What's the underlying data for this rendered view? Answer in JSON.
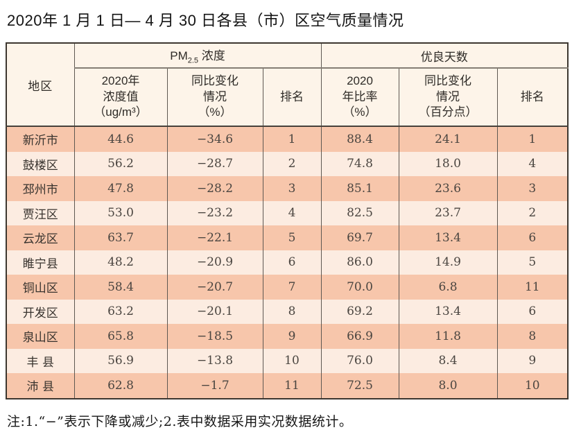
{
  "page": {
    "title": "2020年 1 月 1 日— 4 月 30 日各县（市）区空气质量情况",
    "note": "注:1.“−”表示下降或减少;2.表中数据采用实况数据统计。"
  },
  "table": {
    "region_header": "地区",
    "pm_group": {
      "prefix": "PM",
      "sub": "2.5",
      "suffix": " 浓度"
    },
    "good_days_group": "优良天数",
    "subheaders": {
      "pm_value": "2020年\n浓度值\n（ug/m³）",
      "pm_change": "同比变化\n情况\n（%）",
      "pm_rank": "排名",
      "ratio": "2020\n年比率\n（%）",
      "ratio_change": "同比变化\n情况\n（百分点）",
      "rank": "排名"
    },
    "rows": [
      {
        "region": "新沂市",
        "pm_value": "44.6",
        "pm_change": "−34.6",
        "pm_rank": "1",
        "ratio": "88.4",
        "ratio_change": "24.1",
        "rank": "1"
      },
      {
        "region": "鼓楼区",
        "pm_value": "56.2",
        "pm_change": "−28.7",
        "pm_rank": "2",
        "ratio": "74.8",
        "ratio_change": "18.0",
        "rank": "4"
      },
      {
        "region": "邳州市",
        "pm_value": "47.8",
        "pm_change": "−28.2",
        "pm_rank": "3",
        "ratio": "85.1",
        "ratio_change": "23.6",
        "rank": "3"
      },
      {
        "region": "贾汪区",
        "pm_value": "53.0",
        "pm_change": "−23.2",
        "pm_rank": "4",
        "ratio": "82.5",
        "ratio_change": "23.7",
        "rank": "2"
      },
      {
        "region": "云龙区",
        "pm_value": "63.7",
        "pm_change": "−22.1",
        "pm_rank": "5",
        "ratio": "69.7",
        "ratio_change": "13.4",
        "rank": "6"
      },
      {
        "region": "睢宁县",
        "pm_value": "48.2",
        "pm_change": "−20.9",
        "pm_rank": "6",
        "ratio": "86.0",
        "ratio_change": "14.9",
        "rank": "5"
      },
      {
        "region": "铜山区",
        "pm_value": "58.4",
        "pm_change": "−20.7",
        "pm_rank": "7",
        "ratio": "70.0",
        "ratio_change": "6.8",
        "rank": "11"
      },
      {
        "region": "开发区",
        "pm_value": "63.2",
        "pm_change": "−20.1",
        "pm_rank": "8",
        "ratio": "69.2",
        "ratio_change": "13.4",
        "rank": "6"
      },
      {
        "region": "泉山区",
        "pm_value": "65.8",
        "pm_change": "−18.5",
        "pm_rank": "9",
        "ratio": "66.9",
        "ratio_change": "11.8",
        "rank": "8"
      },
      {
        "region": "丰 县",
        "pm_value": "56.9",
        "pm_change": "−13.8",
        "pm_rank": "10",
        "ratio": "76.0",
        "ratio_change": "8.4",
        "rank": "9"
      },
      {
        "region": "沛 县",
        "pm_value": "62.8",
        "pm_change": "−1.7",
        "pm_rank": "11",
        "ratio": "72.5",
        "ratio_change": "8.0",
        "rank": "10"
      }
    ]
  }
}
